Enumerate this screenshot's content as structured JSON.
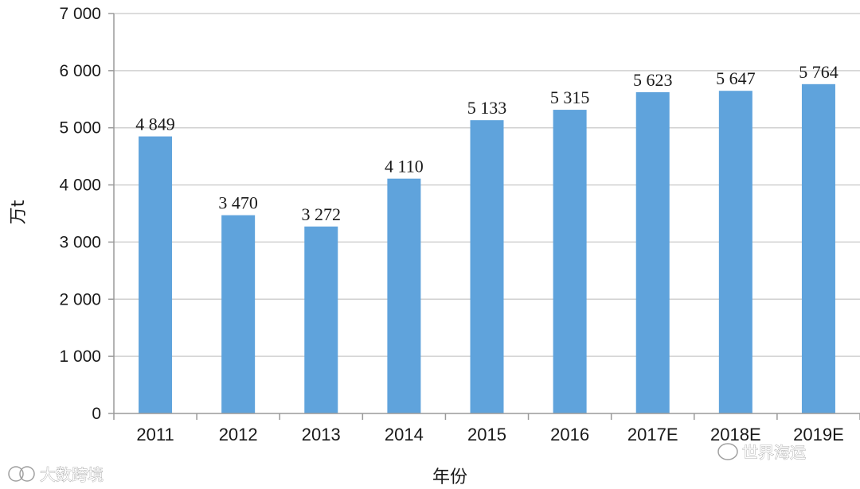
{
  "chart_data": {
    "type": "bar",
    "categories": [
      "2011",
      "2012",
      "2013",
      "2014",
      "2015",
      "2016",
      "2017E",
      "2018E",
      "2019E"
    ],
    "values": [
      4849,
      3470,
      3272,
      4110,
      5133,
      5315,
      5623,
      5647,
      5764
    ],
    "data_labels": [
      "4 849",
      "3 470",
      "3 272",
      "4 110",
      "5 133",
      "5 315",
      "5 623",
      "5 647",
      "5 764"
    ],
    "y_ticks": [
      0,
      1000,
      2000,
      3000,
      4000,
      5000,
      6000,
      7000
    ],
    "y_tick_labels": [
      "0",
      "1 000",
      "2 000",
      "3 000",
      "4 000",
      "5 000",
      "6 000",
      "7 000"
    ],
    "ylim": [
      0,
      7000
    ],
    "xlabel": "年份",
    "ylabel": "万t",
    "grid": true,
    "legend": "none",
    "bar_color": "#5fa3dc",
    "grid_color": "#d0d0d0"
  },
  "watermarks": {
    "left": "大数跨境",
    "right": "世界海运"
  }
}
